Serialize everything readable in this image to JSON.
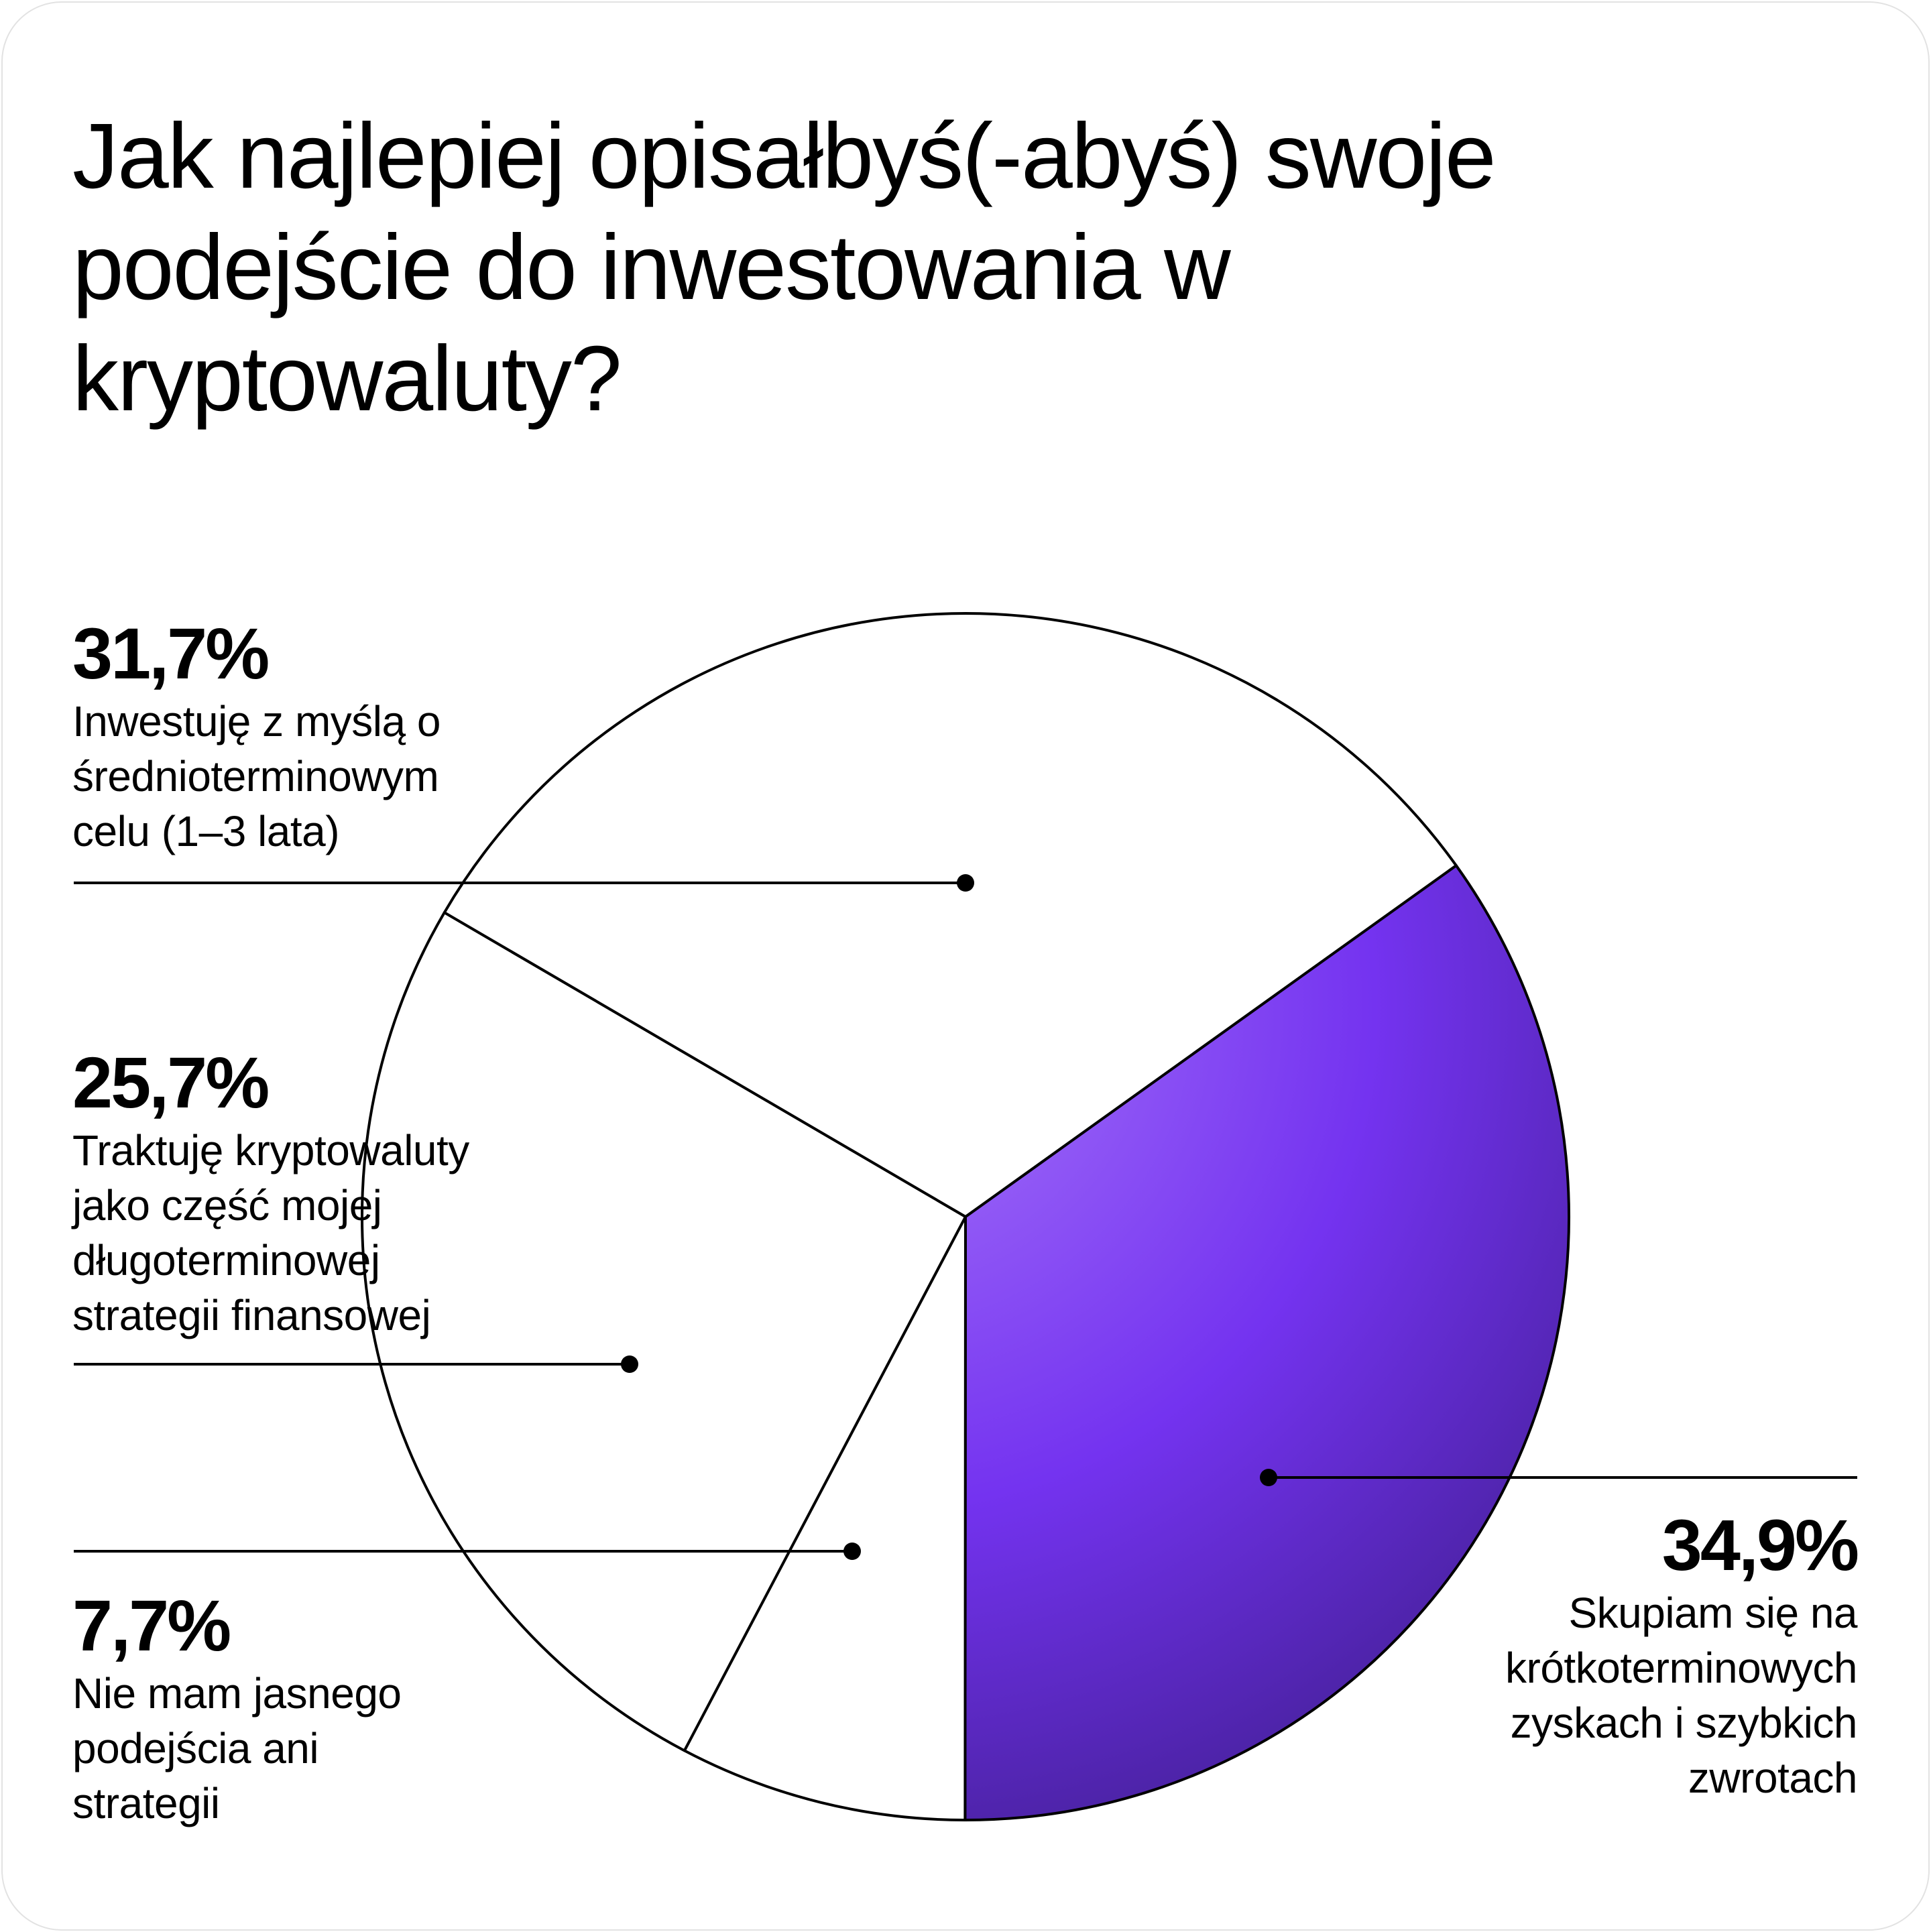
{
  "chart_data": {
    "type": "pie",
    "title": "Jak najlepiej opisałbyś(-abyś) swoje podejście do inwestowania w kryptowaluty?",
    "start_angle_deg": 54.4,
    "direction": "clockwise",
    "slices": [
      {
        "value": 34.9,
        "pct_label": "34,9%",
        "label": "Skupiam się na krótkoterminowych zyskach i szybkich zwrotach",
        "label_lines": "Skupiam się na\nkrótkoterminowych\nzyskach i szybkich\nzwrotach",
        "color": "#7a3cf2",
        "highlight": true
      },
      {
        "value": 7.7,
        "pct_label": "7,7%",
        "label": "Nie mam jasnego podejścia ani strategii",
        "label_lines": "Nie mam jasnego\npodejścia ani\nstrategii",
        "color": "#ffffff"
      },
      {
        "value": 25.7,
        "pct_label": "25,7%",
        "label": "Traktuję kryptowaluty jako część mojej długoterminowej strategii finansowej",
        "label_lines": "Traktuję kryptowaluty\njako część mojej\ndługoterminowej\nstrategii finansowej",
        "color": "#ffffff"
      },
      {
        "value": 31.7,
        "pct_label": "31,7%",
        "label": "Inwestuję z myślą o średnioterminowym celu (1–3 lata)",
        "label_lines": "Inwestuję z myślą o\nśrednioterminowym\ncelu (1–3 lata)",
        "color": "#ffffff"
      }
    ]
  }
}
